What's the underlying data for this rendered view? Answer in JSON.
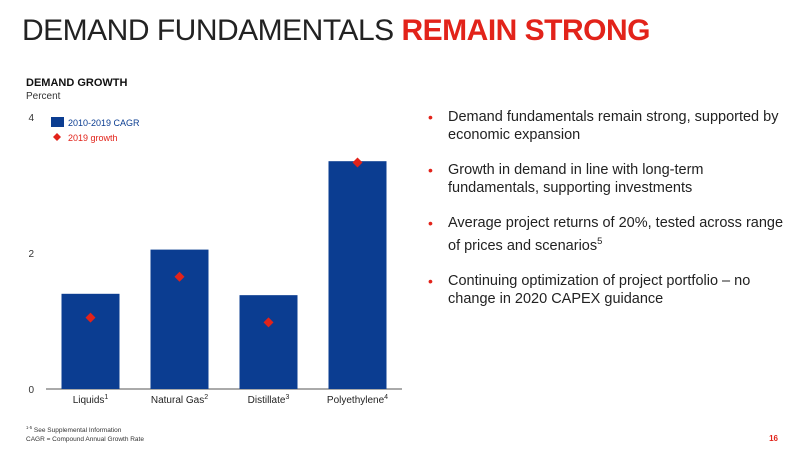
{
  "title": {
    "main": "DEMAND FUNDAMENTALS",
    "accent": "REMAIN STRONG"
  },
  "colors": {
    "accent": "#e2231a",
    "bar": "#0b3d91",
    "marker": "#e2231a"
  },
  "chart_data": {
    "type": "bar",
    "title": "DEMAND GROWTH",
    "ylabel": "Percent",
    "ylim": [
      0,
      4
    ],
    "yticks": [
      "0",
      "2",
      "4"
    ],
    "categories": [
      "Liquids",
      "Natural Gas",
      "Distillate",
      "Polyethylene"
    ],
    "category_footnotes": [
      "1",
      "2",
      "3",
      "4"
    ],
    "series": [
      {
        "name": "2010-2019 CAGR",
        "kind": "bar",
        "values": [
          1.4,
          2.05,
          1.38,
          3.35
        ]
      },
      {
        "name": "2019 growth",
        "kind": "marker",
        "values": [
          1.05,
          1.65,
          0.98,
          3.33
        ]
      }
    ],
    "legend": "top-left",
    "grid": false
  },
  "bullets": [
    {
      "text": "Demand fundamentals remain strong, supported by economic expansion",
      "sup": ""
    },
    {
      "text": "Growth in demand in line with long-term fundamentals, supporting investments",
      "sup": ""
    },
    {
      "text": "Average project returns of 20%, tested across range of prices and scenarios",
      "sup": "5"
    },
    {
      "text": "Continuing optimization of project portfolio – no change in 2020 CAPEX guidance",
      "sup": ""
    }
  ],
  "footnotes": {
    "sup": "1-5",
    "line1": " See Supplemental Information",
    "line2": "CAGR = Compound Annual Growth Rate"
  },
  "page_number": "16"
}
